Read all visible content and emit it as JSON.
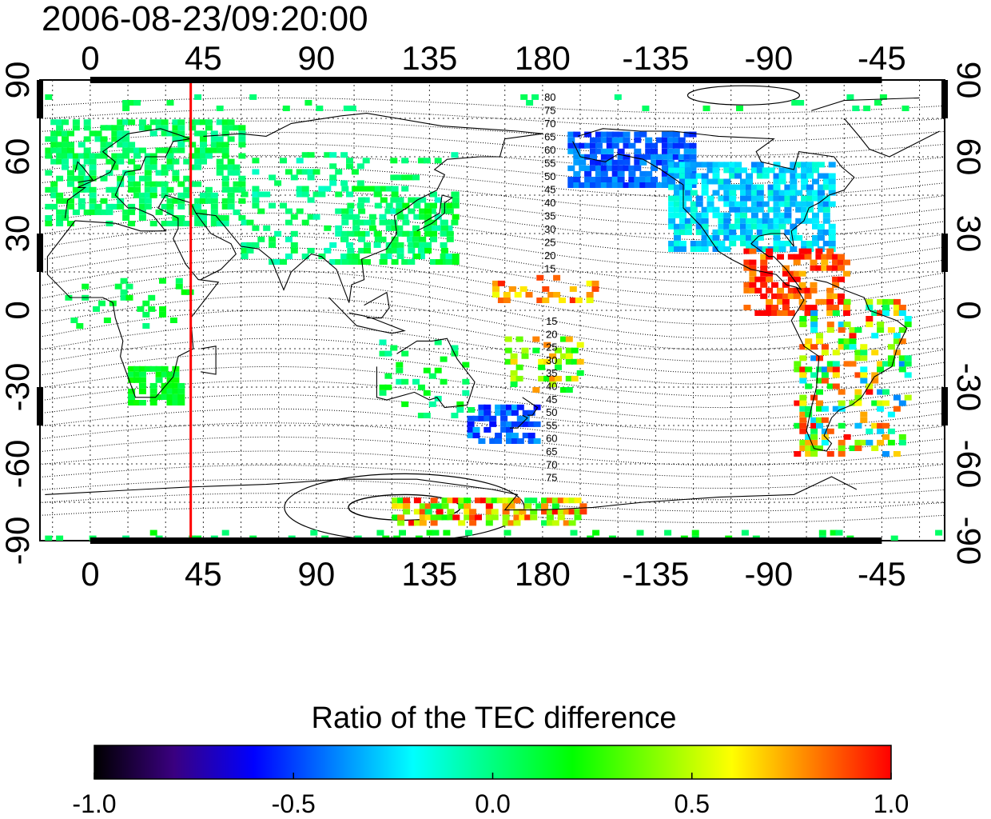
{
  "timestamp": "2006-08-23/09:20:00",
  "colorbar_title": "Ratio of the TEC difference",
  "colorbar_ticks": [
    "-1.0",
    "-0.5",
    "0.0",
    "0.5",
    "1.0"
  ],
  "colorbar_range": [
    -1.0,
    1.0
  ],
  "colorbar_stops": [
    "#000000",
    "#3a0080",
    "#0000ff",
    "#0080ff",
    "#00ffff",
    "#00ff80",
    "#00ff00",
    "#80ff00",
    "#ffff00",
    "#ff8000",
    "#ff0000"
  ],
  "x_tick_labels": [
    "0",
    "45",
    "90",
    "135",
    "180",
    "-135",
    "-90",
    "-45"
  ],
  "y_tick_labels": [
    "90",
    "60",
    "30",
    "0",
    "-30",
    "-60",
    "-90"
  ],
  "marker_longitude": 40,
  "marker_color": "#ff0000",
  "contour_labels_north": [
    "80",
    "75",
    "70",
    "65",
    "60",
    "55",
    "50",
    "45",
    "40",
    "35",
    "30",
    "25",
    "20",
    "15"
  ],
  "contour_labels_south": [
    "15",
    "20",
    "25",
    "30",
    "35",
    "40",
    "45",
    "50",
    "55",
    "60",
    "65",
    "70",
    "75"
  ]
}
